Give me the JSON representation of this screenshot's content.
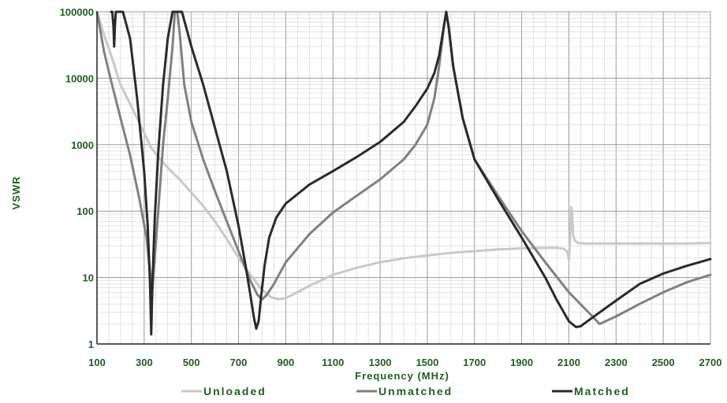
{
  "chart_data": {
    "type": "line",
    "xlabel": "Frequency (MHz)",
    "ylabel": "VSWR",
    "xlim": [
      100,
      2700
    ],
    "ylim": [
      1,
      100000
    ],
    "yscale": "log",
    "grid": true,
    "legend_position": "bottom",
    "xticks": [
      "100",
      "300",
      "500",
      "700",
      "900",
      "1100",
      "1300",
      "1500",
      "1700",
      "1900",
      "2100",
      "2300",
      "2500",
      "2700"
    ],
    "yticks": [
      "1",
      "10",
      "100",
      "1000",
      "10000",
      "100000"
    ],
    "series": [
      {
        "name": "Unloaded",
        "color": "#c8c8c8",
        "x": [
          100,
          130,
          160,
          200,
          250,
          300,
          330,
          360,
          400,
          450,
          500,
          550,
          600,
          650,
          700,
          750,
          800,
          840,
          870,
          900,
          950,
          1000,
          1100,
          1200,
          1300,
          1400,
          1500,
          1600,
          1700,
          1800,
          1900,
          2000,
          2050,
          2080,
          2095,
          2100,
          2105,
          2110,
          2114,
          2118,
          2125,
          2140,
          2170,
          2200,
          2300,
          2400,
          2500,
          2600,
          2700
        ],
        "y": [
          100000,
          45000,
          22000,
          8000,
          3500,
          1500,
          900,
          650,
          450,
          300,
          190,
          120,
          70,
          38,
          20,
          11,
          6.5,
          5.0,
          4.7,
          4.9,
          6.0,
          7.5,
          11,
          14,
          17,
          19.5,
          21.5,
          23.5,
          25,
          26.5,
          27.5,
          28,
          28,
          27,
          24,
          18,
          40,
          115,
          90,
          45,
          36,
          33,
          32.5,
          32.5,
          32.5,
          32.5,
          32.5,
          32.5,
          33
        ]
      },
      {
        "name": "Unmatched",
        "color": "#808080",
        "x": [
          100,
          130,
          160,
          200,
          240,
          280,
          310,
          325,
          332,
          340,
          355,
          380,
          400,
          420,
          430,
          440,
          450,
          470,
          500,
          550,
          600,
          650,
          700,
          750,
          780,
          800,
          820,
          850,
          900,
          1000,
          1100,
          1200,
          1300,
          1400,
          1450,
          1500,
          1530,
          1550,
          1570,
          1580,
          1590,
          1610,
          1650,
          1700,
          1800,
          1900,
          2000,
          2100,
          2200,
          2230,
          2300,
          2400,
          2500,
          2600,
          2700
        ],
        "y": [
          100000,
          25000,
          9000,
          2500,
          700,
          150,
          40,
          12,
          5,
          12,
          60,
          1000,
          5000,
          30000,
          100000,
          100000,
          50000,
          8000,
          2200,
          600,
          200,
          70,
          25,
          9,
          5.5,
          4.7,
          5.5,
          8,
          17,
          45,
          95,
          170,
          300,
          600,
          1000,
          2000,
          5000,
          15000,
          60000,
          100000,
          60000,
          15000,
          2500,
          600,
          170,
          50,
          17,
          6,
          2.6,
          2.0,
          2.6,
          4.0,
          6.0,
          8.5,
          11
        ]
      },
      {
        "name": "Matched",
        "color": "#2a2a2a",
        "x": [
          160,
          165,
          170,
          173,
          176,
          180,
          190,
          210,
          240,
          270,
          300,
          315,
          325,
          330,
          335,
          345,
          360,
          380,
          400,
          420,
          430,
          440,
          460,
          500,
          550,
          600,
          650,
          700,
          730,
          750,
          765,
          775,
          785,
          795,
          810,
          830,
          860,
          900,
          1000,
          1100,
          1200,
          1300,
          1400,
          1450,
          1500,
          1530,
          1550,
          1570,
          1580,
          1590,
          1610,
          1650,
          1700,
          1800,
          1900,
          2000,
          2050,
          2100,
          2130,
          2150,
          2200,
          2300,
          2400,
          2500,
          2600,
          2700
        ],
        "y": [
          100000,
          100000,
          60000,
          30000,
          60000,
          100000,
          100000,
          100000,
          40000,
          5000,
          400,
          60,
          8,
          1.4,
          8,
          80,
          800,
          8000,
          40000,
          100000,
          100000,
          100000,
          100000,
          30000,
          8000,
          1800,
          400,
          60,
          15,
          5.5,
          2.5,
          1.7,
          2.2,
          5,
          15,
          40,
          80,
          130,
          250,
          400,
          650,
          1100,
          2200,
          3800,
          7000,
          12000,
          22000,
          60000,
          100000,
          60000,
          15000,
          2500,
          600,
          150,
          40,
          10,
          4.5,
          2.2,
          1.8,
          1.85,
          2.5,
          4.5,
          8,
          11.5,
          15,
          19
        ]
      }
    ]
  }
}
